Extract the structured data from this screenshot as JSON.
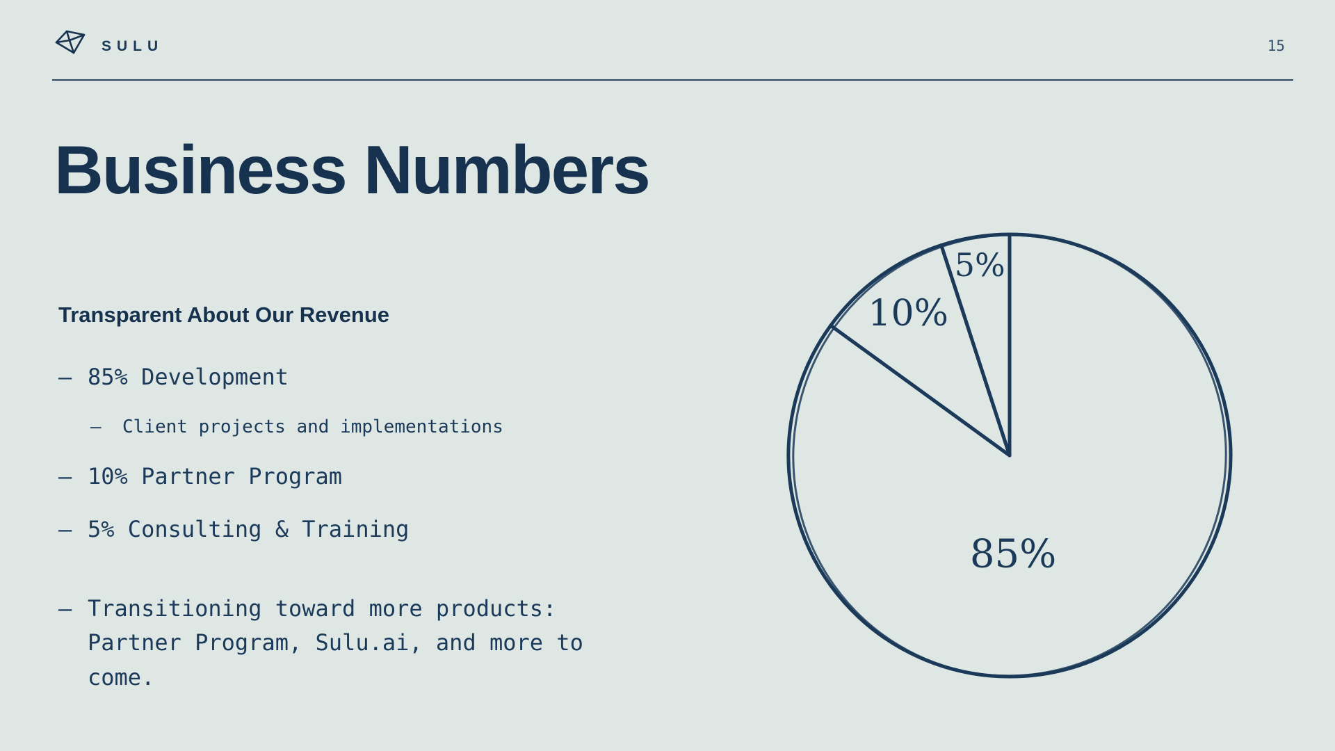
{
  "header": {
    "brand": "SULU",
    "page_number": "15"
  },
  "title": "Business Numbers",
  "content": {
    "subtitle": "Transparent About Our Revenue",
    "marker": "–",
    "bullets": [
      {
        "level": 1,
        "text": "85% Development",
        "spaced": false
      },
      {
        "level": 2,
        "text": "Client projects and implementations",
        "spaced": false
      },
      {
        "level": 1,
        "text": "10% Partner Program",
        "spaced": false
      },
      {
        "level": 1,
        "text": "5% Consulting & Training",
        "spaced": false
      },
      {
        "level": 1,
        "text": "Transitioning toward more products: Partner Program, Sulu.ai, and more to come.",
        "spaced": true
      }
    ]
  },
  "chart_data": {
    "type": "pie",
    "labels": [
      "Development",
      "Partner Program",
      "Consulting & Training"
    ],
    "values": [
      85,
      10,
      5
    ],
    "slice_labels": [
      "85%",
      "10%",
      "5%"
    ],
    "start_angle_deg": 0,
    "direction": "clockwise",
    "legend_position": "none",
    "style": "hand-drawn unfilled outline on slide background"
  },
  "colors": {
    "background": "#dfe7e4",
    "ink": "#1b3a5a"
  }
}
